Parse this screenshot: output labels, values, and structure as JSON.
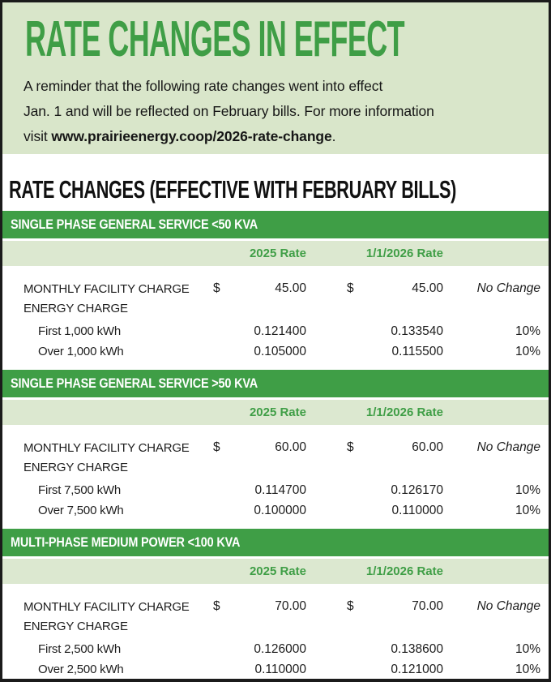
{
  "banner": {
    "title": "RATE CHANGES IN EFFECT",
    "intro_line1": "A reminder that the following rate changes went into effect",
    "intro_line2": "Jan. 1 and will be reflected on February bills. For more information",
    "intro_line3_prefix": "visit ",
    "intro_url": "www.prairieenergy.coop/2026-rate-change",
    "intro_line3_suffix": "."
  },
  "heading": "RATE CHANGES (EFFECTIVE WITH FEBRUARY BILLS)",
  "columns": {
    "rate_2025": "2025 Rate",
    "rate_2026": "1/1/2026 Rate"
  },
  "colors": {
    "green": "#3f9e46",
    "banner_bg": "#d9e6ca",
    "subheader_bg": "#dce8d0"
  },
  "sections": [
    {
      "title": "SINGLE PHASE GENERAL SERVICE <50 KVA",
      "facility": {
        "label": "MONTHLY FACILITY CHARGE",
        "currency": "$",
        "rate_2025": "45.00",
        "rate_2026": "45.00",
        "change": "No Change"
      },
      "energy_label": "ENERGY CHARGE",
      "tiers": [
        {
          "label": "First 1,000 kWh",
          "rate_2025": "0.121400",
          "rate_2026": "0.133540",
          "change": "10%"
        },
        {
          "label": "Over 1,000 kWh",
          "rate_2025": "0.105000",
          "rate_2026": "0.115500",
          "change": "10%"
        }
      ]
    },
    {
      "title": "SINGLE PHASE GENERAL SERVICE >50 KVA",
      "facility": {
        "label": "MONTHLY FACILITY CHARGE",
        "currency": "$",
        "rate_2025": "60.00",
        "rate_2026": "60.00",
        "change": "No Change"
      },
      "energy_label": "ENERGY CHARGE",
      "tiers": [
        {
          "label": "First 7,500 kWh",
          "rate_2025": "0.114700",
          "rate_2026": "0.126170",
          "change": "10%"
        },
        {
          "label": "Over 7,500 kWh",
          "rate_2025": "0.100000",
          "rate_2026": "0.110000",
          "change": "10%"
        }
      ]
    },
    {
      "title": "MULTI-PHASE MEDIUM POWER <100 KVA",
      "facility": {
        "label": "MONTHLY FACILITY CHARGE",
        "currency": "$",
        "rate_2025": "70.00",
        "rate_2026": "70.00",
        "change": "No Change"
      },
      "energy_label": "ENERGY CHARGE",
      "tiers": [
        {
          "label": "First 2,500 kWh",
          "rate_2025": "0.126000",
          "rate_2026": "0.138600",
          "change": "10%"
        },
        {
          "label": "Over 2,500 kWh",
          "rate_2025": "0.110000",
          "rate_2026": "0.121000",
          "change": "10%"
        }
      ]
    }
  ]
}
